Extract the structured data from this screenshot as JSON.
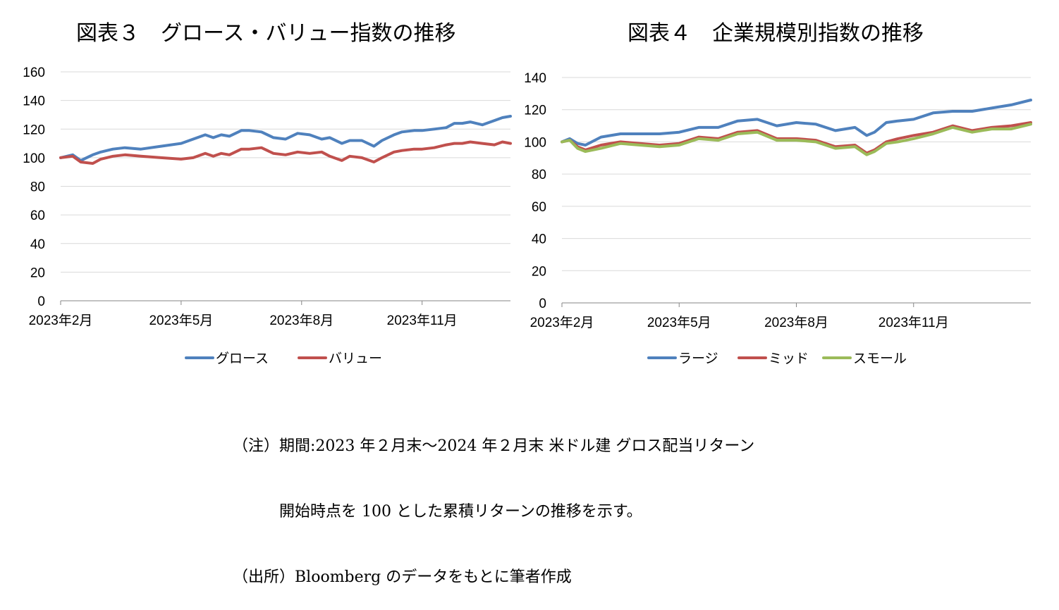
{
  "chart_data": [
    {
      "type": "line",
      "title": "図表３　グロース・バリュー指数の推移",
      "x_tick_labels": [
        "2023年2月",
        "2023年5月",
        "2023年8月",
        "2023年11月"
      ],
      "x_tick_months": [
        0,
        3,
        6,
        9
      ],
      "x_range_months": [
        0,
        11.2
      ],
      "ylim": [
        0,
        160
      ],
      "y_ticks": [
        0,
        20,
        40,
        60,
        80,
        100,
        120,
        140,
        160
      ],
      "legend_position": "bottom",
      "series": [
        {
          "name": "グロース",
          "color": "#4F81BD",
          "x": [
            0,
            0.3,
            0.5,
            0.8,
            1.0,
            1.3,
            1.6,
            2.0,
            2.5,
            3.0,
            3.3,
            3.6,
            3.8,
            4.0,
            4.2,
            4.5,
            4.7,
            5.0,
            5.3,
            5.6,
            5.9,
            6.2,
            6.5,
            6.7,
            7.0,
            7.2,
            7.5,
            7.8,
            8.0,
            8.3,
            8.5,
            8.8,
            9.0,
            9.3,
            9.6,
            9.8,
            10.0,
            10.2,
            10.5,
            10.8,
            11.0,
            11.2
          ],
          "values": [
            100,
            102,
            98,
            102,
            104,
            106,
            107,
            106,
            108,
            110,
            113,
            116,
            114,
            116,
            115,
            119,
            119,
            118,
            114,
            113,
            117,
            116,
            113,
            114,
            110,
            112,
            112,
            108,
            112,
            116,
            118,
            119,
            119,
            120,
            121,
            124,
            124,
            125,
            123,
            126,
            128,
            129
          ]
        },
        {
          "name": "バリュー",
          "color": "#C0504D",
          "x": [
            0,
            0.3,
            0.5,
            0.8,
            1.0,
            1.3,
            1.6,
            2.0,
            2.5,
            3.0,
            3.3,
            3.6,
            3.8,
            4.0,
            4.2,
            4.5,
            4.7,
            5.0,
            5.3,
            5.6,
            5.9,
            6.2,
            6.5,
            6.7,
            7.0,
            7.2,
            7.5,
            7.8,
            8.0,
            8.3,
            8.5,
            8.8,
            9.0,
            9.3,
            9.6,
            9.8,
            10.0,
            10.2,
            10.5,
            10.8,
            11.0,
            11.2
          ],
          "values": [
            100,
            101,
            97,
            96,
            99,
            101,
            102,
            101,
            100,
            99,
            100,
            103,
            101,
            103,
            102,
            106,
            106,
            107,
            103,
            102,
            104,
            103,
            104,
            101,
            98,
            101,
            100,
            97,
            100,
            104,
            105,
            106,
            106,
            107,
            109,
            110,
            110,
            111,
            110,
            109,
            111,
            110
          ]
        }
      ]
    },
    {
      "type": "line",
      "title": "図表４　企業規模別指数の推移",
      "x_tick_labels": [
        "2023年2月",
        "2023年5月",
        "2023年8月",
        "2023年11月"
      ],
      "x_tick_months": [
        0,
        3,
        6,
        9
      ],
      "x_range_months": [
        0,
        12
      ],
      "ylim": [
        0,
        140
      ],
      "y_ticks": [
        0,
        20,
        40,
        60,
        80,
        100,
        120,
        140
      ],
      "legend_position": "bottom",
      "series": [
        {
          "name": "ラージ",
          "color": "#4F81BD",
          "x": [
            0,
            0.2,
            0.4,
            0.6,
            1.0,
            1.5,
            2.0,
            2.5,
            3.0,
            3.5,
            4.0,
            4.5,
            5.0,
            5.5,
            6.0,
            6.5,
            7.0,
            7.5,
            7.8,
            8.0,
            8.3,
            8.6,
            9.0,
            9.5,
            10.0,
            10.5,
            11.0,
            11.5,
            12.0
          ],
          "values": [
            100,
            102,
            99,
            98,
            103,
            105,
            105,
            105,
            106,
            109,
            109,
            113,
            114,
            110,
            112,
            111,
            107,
            109,
            104,
            106,
            112,
            113,
            114,
            118,
            119,
            119,
            121,
            123,
            126
          ]
        },
        {
          "name": "ミッド",
          "color": "#C0504D",
          "x": [
            0,
            0.2,
            0.4,
            0.6,
            1.0,
            1.5,
            2.0,
            2.5,
            3.0,
            3.5,
            4.0,
            4.5,
            5.0,
            5.5,
            6.0,
            6.5,
            7.0,
            7.5,
            7.8,
            8.0,
            8.3,
            8.6,
            9.0,
            9.5,
            10.0,
            10.5,
            11.0,
            11.5,
            12.0
          ],
          "values": [
            100,
            101,
            97,
            95,
            98,
            100,
            99,
            98,
            99,
            103,
            102,
            106,
            107,
            102,
            102,
            101,
            97,
            98,
            93,
            95,
            100,
            102,
            104,
            106,
            110,
            107,
            109,
            110,
            112
          ]
        },
        {
          "name": "スモール",
          "color": "#9BBB59",
          "x": [
            0,
            0.2,
            0.4,
            0.6,
            1.0,
            1.5,
            2.0,
            2.5,
            3.0,
            3.5,
            4.0,
            4.5,
            5.0,
            5.5,
            6.0,
            6.5,
            7.0,
            7.5,
            7.8,
            8.0,
            8.3,
            8.6,
            9.0,
            9.5,
            10.0,
            10.5,
            11.0,
            11.5,
            12.0
          ],
          "values": [
            100,
            101,
            96,
            94,
            96,
            99,
            98,
            97,
            98,
            102,
            101,
            105,
            106,
            101,
            101,
            100,
            96,
            97,
            92,
            94,
            99,
            100,
            102,
            105,
            109,
            106,
            108,
            108,
            111
          ]
        }
      ]
    }
  ],
  "notes": [
    "（注）期間:2023 年２月末～2024 年２月末 米ドル建 グロス配当リターン",
    "開始時点を 100 とした累積リターンの推移を示す。",
    "（出所）Bloomberg のデータをもとに筆者作成"
  ]
}
